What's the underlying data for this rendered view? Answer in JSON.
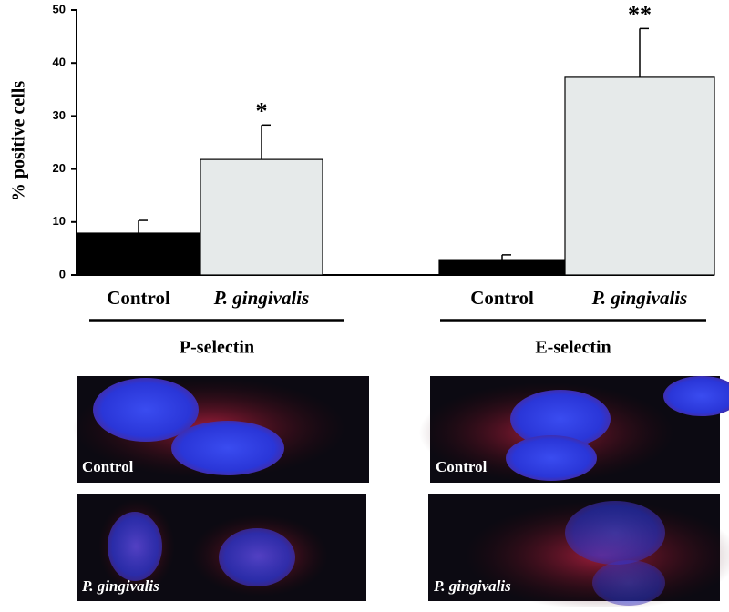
{
  "chart_data": {
    "type": "bar",
    "ylabel": "% positive cells",
    "categories": [
      "P-selectin",
      "E-selectin"
    ],
    "series": [
      {
        "name": "Control",
        "color": "#000000",
        "values": [
          7.9,
          2.9
        ],
        "errors": [
          2.4,
          0.9
        ]
      },
      {
        "name": "P. gingivalis",
        "color": "#e6eaea",
        "values": [
          21.8,
          37.3
        ],
        "errors": [
          6.5,
          9.2
        ],
        "significance": [
          "*",
          "**"
        ]
      }
    ],
    "ylim": [
      0,
      50
    ],
    "yticks": [
      0,
      10,
      20,
      30,
      40,
      50
    ]
  },
  "images": [
    {
      "group": "P-selectin",
      "label": "Control"
    },
    {
      "group": "P-selectin",
      "label": "P. gingivalis"
    },
    {
      "group": "E-selectin",
      "label": "Control"
    },
    {
      "group": "E-selectin",
      "label": "P. gingivalis"
    }
  ]
}
